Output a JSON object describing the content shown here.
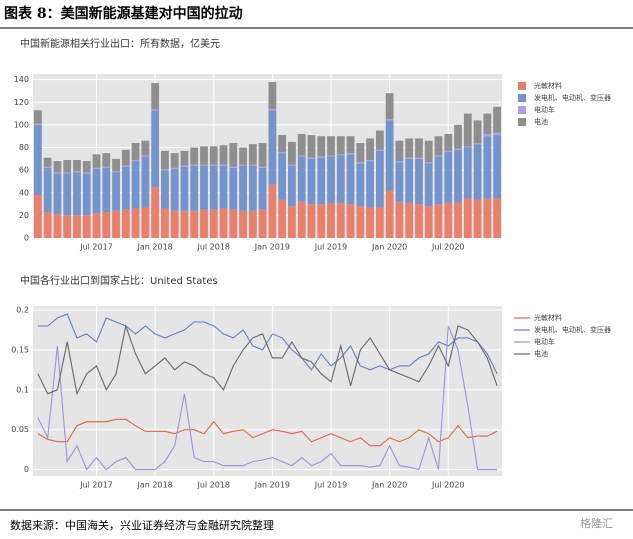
{
  "title": "图表 8：美国新能源基建对中国的拉动",
  "source": "数据来源：中国海关，兴业证券经济与金融研究院整理",
  "watermark": "格隆汇",
  "chart_data": [
    {
      "type": "bar",
      "title": "中国新能源相关行业出口：所有数据，亿美元",
      "stacked": true,
      "legend": "right",
      "categories": [
        null,
        null,
        null,
        null,
        null,
        null,
        "Jul 2017",
        null,
        null,
        null,
        null,
        null,
        "Jan 2018",
        null,
        null,
        null,
        null,
        null,
        "Jul 2018",
        null,
        null,
        null,
        null,
        null,
        "Jan 2019",
        null,
        null,
        null,
        null,
        null,
        "Jul 2019",
        null,
        null,
        null,
        null,
        null,
        "Jan 2020",
        null,
        null,
        null,
        null,
        null,
        "Jul 2020",
        null,
        null,
        null,
        null,
        null
      ],
      "ylim": [
        0,
        145
      ],
      "yticks": [
        0,
        20,
        40,
        60,
        80,
        100,
        120,
        140
      ],
      "series": [
        {
          "name": "光敏材料",
          "color": "#e8806e",
          "values": [
            38,
            23,
            21,
            20,
            20,
            20,
            22,
            23,
            24,
            25,
            26,
            27,
            45,
            26,
            24,
            24,
            24,
            25,
            25,
            26,
            25,
            24,
            24,
            25,
            47,
            34,
            28,
            32,
            30,
            30,
            31,
            31,
            30,
            28,
            27,
            27,
            42,
            32,
            31,
            30,
            28,
            30,
            31,
            31,
            35,
            34,
            35,
            35
          ]
        },
        {
          "name": "发电机、电动机、变压器",
          "color": "#7594cb",
          "values": [
            62,
            39,
            36,
            37,
            38,
            37,
            39,
            39,
            34,
            38,
            42,
            45,
            68,
            34,
            37,
            39,
            40,
            39,
            39,
            38,
            37,
            40,
            40,
            37,
            66,
            41,
            36,
            40,
            40,
            41,
            41,
            42,
            44,
            38,
            41,
            50,
            62,
            35,
            39,
            40,
            38,
            42,
            45,
            47,
            45,
            49,
            55,
            56
          ]
        },
        {
          "name": "电动车",
          "color": "#ab9fe2",
          "values": [
            1,
            1,
            1,
            1,
            1,
            1,
            1,
            1,
            1,
            1,
            1,
            1,
            1,
            1,
            1,
            1,
            1,
            1,
            1,
            1,
            1,
            1,
            1,
            1,
            1,
            1,
            1,
            1,
            1,
            1,
            1,
            1,
            1,
            1,
            1,
            1,
            1,
            1,
            1,
            1,
            1,
            1,
            1,
            1,
            1,
            1,
            2,
            2
          ]
        },
        {
          "name": "电池",
          "color": "#8f8f8f",
          "values": [
            12,
            8,
            10,
            11,
            10,
            10,
            12,
            12,
            11,
            14,
            15,
            13,
            23,
            16,
            13,
            13,
            15,
            16,
            16,
            17,
            21,
            15,
            18,
            21,
            24,
            15,
            20,
            19,
            20,
            18,
            17,
            16,
            15,
            17,
            19,
            17,
            23,
            18,
            17,
            17,
            19,
            17,
            15,
            21,
            29,
            20,
            18,
            23
          ]
        }
      ]
    },
    {
      "type": "line",
      "title": "中国各行业出口到国家占比：United States",
      "legend": "right",
      "categories": [
        null,
        null,
        null,
        null,
        null,
        null,
        "Jul 2017",
        null,
        null,
        null,
        null,
        null,
        "Jan 2018",
        null,
        null,
        null,
        null,
        null,
        "Jul 2018",
        null,
        null,
        null,
        null,
        null,
        "Jan 2019",
        null,
        null,
        null,
        null,
        null,
        "Jul 2019",
        null,
        null,
        null,
        null,
        null,
        "Jan 2020",
        null,
        null,
        null,
        null,
        null,
        "Jul 2020",
        null,
        null,
        null,
        null,
        null
      ],
      "ylim": [
        -0.008,
        0.205
      ],
      "yticks": [
        0,
        0.05,
        0.1,
        0.15,
        0.2
      ],
      "series": [
        {
          "name": "光敏材料",
          "color": "#e3643f",
          "values": [
            0.045,
            0.038,
            0.035,
            0.035,
            0.055,
            0.06,
            0.06,
            0.06,
            0.063,
            0.063,
            0.055,
            0.048,
            0.048,
            0.048,
            0.045,
            0.05,
            0.05,
            0.045,
            0.06,
            0.045,
            0.048,
            0.05,
            0.04,
            0.045,
            0.05,
            0.048,
            0.045,
            0.048,
            0.035,
            0.04,
            0.045,
            0.04,
            0.035,
            0.04,
            0.03,
            0.03,
            0.04,
            0.035,
            0.04,
            0.05,
            0.045,
            0.035,
            0.04,
            0.055,
            0.04,
            0.042,
            0.042,
            0.048
          ]
        },
        {
          "name": "发电机、电动机、变压器",
          "color": "#5a7fcb",
          "values": [
            0.18,
            0.18,
            0.19,
            0.195,
            0.165,
            0.17,
            0.16,
            0.19,
            0.185,
            0.18,
            0.17,
            0.18,
            0.17,
            0.165,
            0.17,
            0.175,
            0.185,
            0.185,
            0.18,
            0.17,
            0.165,
            0.175,
            0.155,
            0.15,
            0.17,
            0.165,
            0.15,
            0.14,
            0.125,
            0.145,
            0.13,
            0.14,
            0.155,
            0.13,
            0.125,
            0.13,
            0.125,
            0.13,
            0.13,
            0.14,
            0.145,
            0.16,
            0.155,
            0.165,
            0.165,
            0.16,
            0.145,
            0.12
          ]
        },
        {
          "name": "电动车",
          "color": "#9b90dd",
          "values": [
            0.065,
            0.04,
            0.155,
            0.01,
            0.03,
            0.0,
            0.015,
            0.0,
            0.01,
            0.015,
            0.0,
            0.0,
            0.0,
            0.01,
            0.03,
            0.095,
            0.015,
            0.01,
            0.01,
            0.005,
            0.005,
            0.005,
            0.01,
            0.012,
            0.015,
            0.01,
            0.005,
            0.015,
            0.005,
            0.01,
            0.02,
            0.005,
            0.005,
            0.005,
            0.003,
            0.005,
            0.03,
            0.005,
            0.003,
            0.0,
            0.04,
            0.0,
            0.18,
            0.15,
            0.08,
            0.0,
            0.0,
            0.0
          ]
        },
        {
          "name": "电池",
          "color": "#666666",
          "values": [
            0.12,
            0.095,
            0.1,
            0.16,
            0.095,
            0.12,
            0.13,
            0.1,
            0.12,
            0.18,
            0.145,
            0.12,
            0.13,
            0.14,
            0.125,
            0.135,
            0.13,
            0.12,
            0.115,
            0.1,
            0.13,
            0.15,
            0.165,
            0.17,
            0.14,
            0.14,
            0.16,
            0.14,
            0.135,
            0.12,
            0.11,
            0.155,
            0.105,
            0.15,
            0.165,
            0.145,
            0.125,
            0.12,
            0.115,
            0.11,
            0.13,
            0.155,
            0.13,
            0.18,
            0.175,
            0.16,
            0.14,
            0.105
          ]
        }
      ]
    }
  ]
}
